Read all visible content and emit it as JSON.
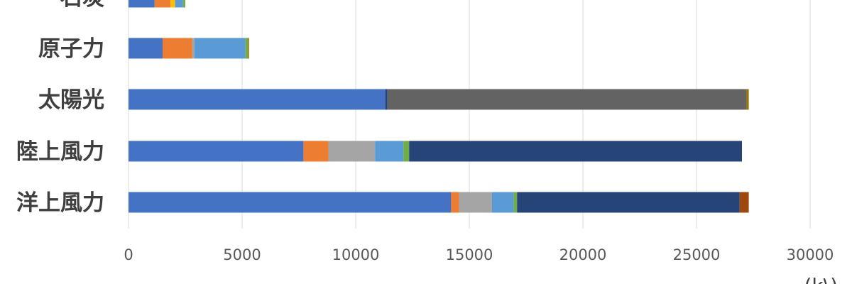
{
  "chart_data": {
    "type": "bar",
    "orientation": "horizontal",
    "stacked": true,
    "categories": [
      "石炭",
      "原子力",
      "太陽光",
      "陸上風力",
      "洋上風力"
    ],
    "xlim": [
      0,
      30000
    ],
    "xticks": [
      0,
      5000,
      10000,
      15000,
      20000,
      25000,
      30000
    ],
    "grid": true,
    "segment_colors": [
      "#4472c4",
      "#ed7d31",
      "#a5a5a5",
      "#ffc000",
      "#5b9bd5",
      "#70ad47",
      "#264478",
      "#636363",
      "#997300",
      "#9e480e"
    ],
    "segments": [
      [
        1150,
        700,
        0,
        200,
        350,
        100,
        0,
        0,
        0,
        0
      ],
      [
        1500,
        1300,
        100,
        0,
        2250,
        100,
        0,
        0,
        50,
        0
      ],
      [
        11300,
        0,
        0,
        0,
        0,
        0,
        100,
        15800,
        100,
        0
      ],
      [
        7700,
        1100,
        2050,
        0,
        1250,
        250,
        14650,
        0,
        0,
        0
      ],
      [
        14200,
        350,
        1450,
        0,
        950,
        150,
        9800,
        0,
        0,
        400
      ]
    ],
    "bottom_caption": "(k\\)"
  }
}
